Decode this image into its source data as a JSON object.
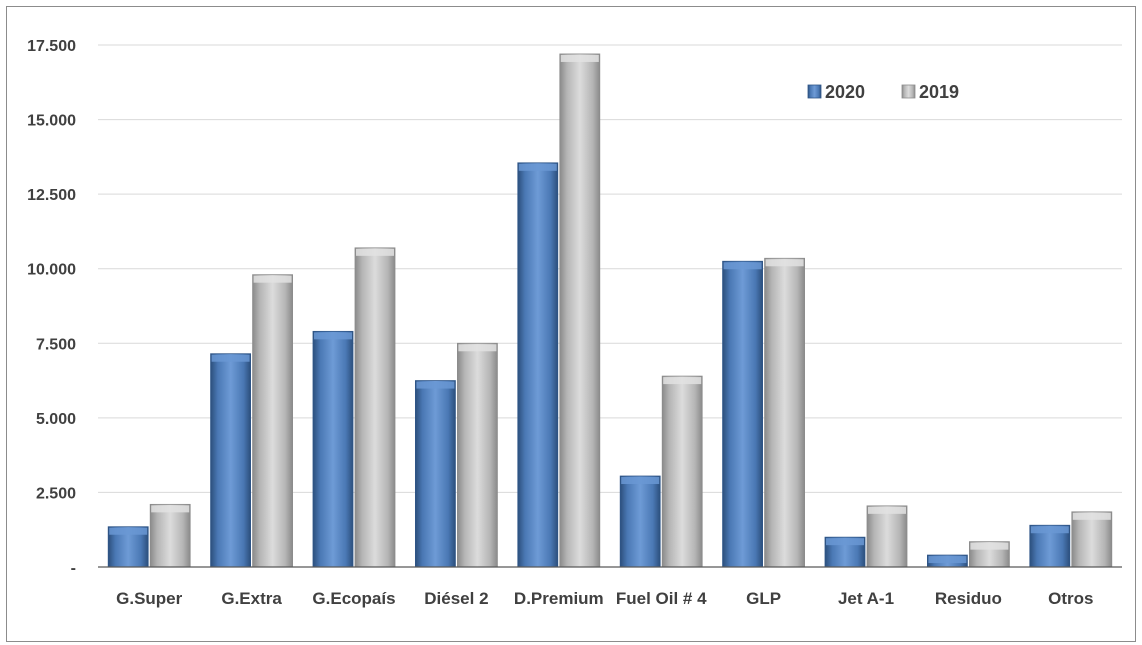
{
  "chart_data": {
    "type": "bar",
    "categories": [
      "G.Super",
      "G.Extra",
      "G.Ecopaís",
      "Diésel 2",
      "D.Premium",
      "Fuel Oil # 4",
      "GLP",
      "Jet A-1",
      "Residuo",
      "Otros"
    ],
    "series": [
      {
        "name": "2020",
        "values": [
          1350,
          7150,
          7900,
          6250,
          13550,
          3050,
          10250,
          1000,
          400,
          1400
        ],
        "color": "#4f81bd"
      },
      {
        "name": "2019",
        "values": [
          2100,
          9800,
          10700,
          7500,
          17200,
          6400,
          10350,
          2050,
          850,
          1850
        ],
        "color": "#bfbfbf"
      }
    ],
    "yticks": [
      "-",
      "2.500",
      "5.000",
      "7.500",
      "10.000",
      "12.500",
      "15.000",
      "17.500"
    ],
    "ylim": [
      0,
      17500
    ],
    "grid": true,
    "legend_position": "top-right",
    "title": "",
    "xlabel": "",
    "ylabel": ""
  }
}
